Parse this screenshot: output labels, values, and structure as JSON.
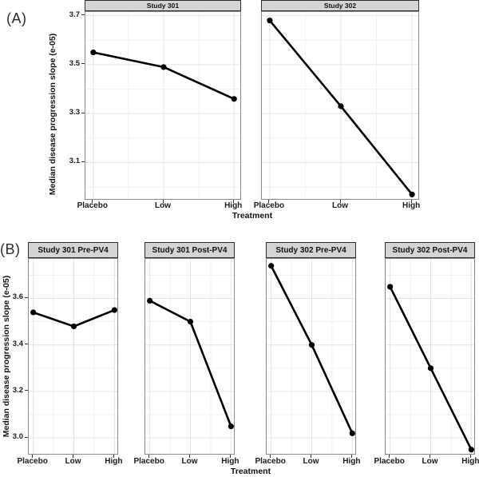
{
  "figure_tags": {
    "panel_a": "(A)",
    "panel_b": "(B)"
  },
  "colors": {
    "line": "#000000",
    "point": "#000000",
    "strip_bg": "#d4d4d4",
    "strip_border": "#2b2b2b",
    "panel_border": "#8a8a8a",
    "grid_major": "#e4e4e4",
    "grid_minor": "#f1f1f1",
    "tick_text": "#1a1a1a"
  },
  "chart_data": [
    {
      "type": "line",
      "panel_tag": "(A)",
      "title": "",
      "xlabel": "Treatment",
      "ylabel": "Median disease progression slope (e-05)",
      "categories": [
        "Placebo",
        "Low",
        "High"
      ],
      "series": [
        {
          "name": "Study 301",
          "values": [
            3.55,
            3.49,
            3.36
          ]
        },
        {
          "name": "Study 302",
          "values": [
            3.68,
            3.33,
            2.97
          ]
        }
      ],
      "yticks": [
        3.1,
        3.3,
        3.5,
        3.7
      ],
      "ylim": [
        2.945,
        3.715
      ],
      "grid": true,
      "legend": "none",
      "layout": "facet_row_1x2"
    },
    {
      "type": "line",
      "panel_tag": "(B)",
      "title": "",
      "xlabel": "Treatment",
      "ylabel": "Median disease progression slope (e-05)",
      "categories": [
        "Placebo",
        "Low",
        "High"
      ],
      "series": [
        {
          "name": "Study 301 Pre-PV4",
          "values": [
            3.54,
            3.48,
            3.55
          ]
        },
        {
          "name": "Study 301 Post-PV4",
          "values": [
            3.59,
            3.5,
            3.05
          ]
        },
        {
          "name": "Study 302 Pre-PV4",
          "values": [
            3.74,
            3.4,
            3.02
          ]
        },
        {
          "name": "Study 302 Post-PV4",
          "values": [
            3.65,
            3.3,
            2.95
          ]
        }
      ],
      "yticks": [
        3.0,
        3.2,
        3.4,
        3.6
      ],
      "ylim": [
        2.925,
        3.77
      ],
      "grid": true,
      "legend": "none",
      "layout": "facet_row_1x4"
    }
  ]
}
